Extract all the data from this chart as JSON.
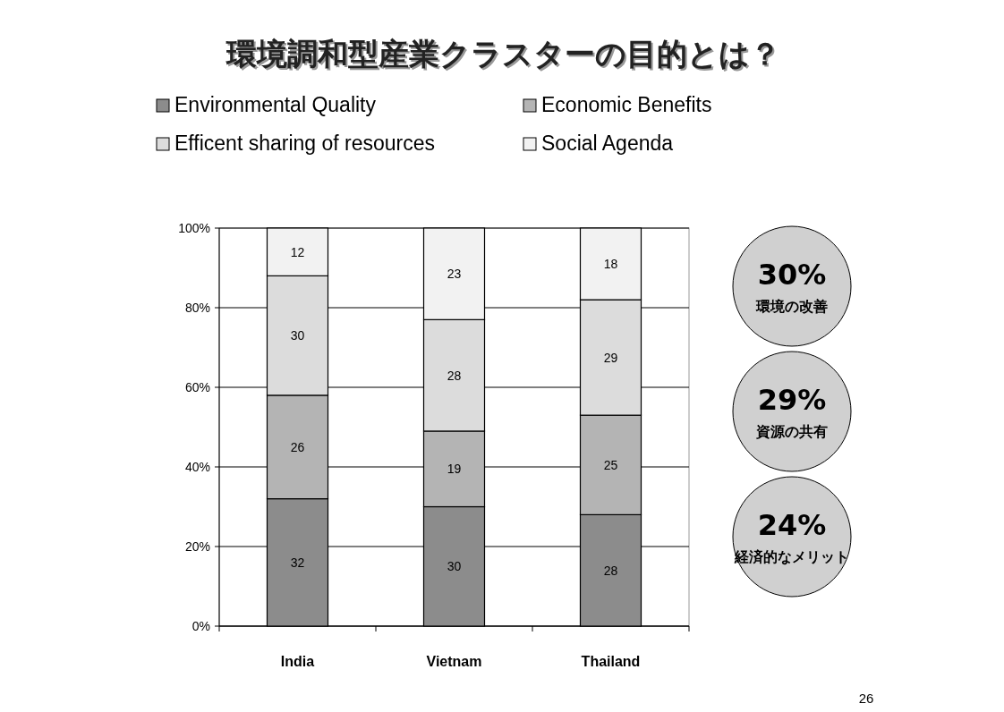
{
  "chart_data": {
    "type": "bar",
    "title": "環境調和型産業クラスターの目的とは？",
    "stacked": true,
    "categories": [
      "India",
      "Vietnam",
      "Thailand"
    ],
    "series": [
      {
        "name": "Environmental  Quality",
        "color": "#8c8c8c",
        "values": [
          32,
          30,
          28
        ]
      },
      {
        "name": "Economic Benefits",
        "color": "#b4b4b4",
        "values": [
          26,
          19,
          25
        ]
      },
      {
        "name": "Efficent sharing of resources",
        "color": "#dcdcdc",
        "values": [
          30,
          28,
          29
        ]
      },
      {
        "name": "Social Agenda",
        "color": "#f2f2f2",
        "values": [
          12,
          23,
          18
        ]
      }
    ],
    "ylim": [
      0,
      100
    ],
    "yticks": [
      {
        "value": 0,
        "label": "0%"
      },
      {
        "value": 20,
        "label": "20%"
      },
      {
        "value": 40,
        "label": "40%"
      },
      {
        "value": 60,
        "label": "60%"
      },
      {
        "value": 80,
        "label": "80%"
      },
      {
        "value": 100,
        "label": "100%"
      }
    ],
    "grid": "y",
    "legend": "top",
    "data_labels": true,
    "annotations": [
      "30%\n環境の改善",
      "29%\n資源の共有",
      "24%\n経済的なメリット",
      "26"
    ]
  }
}
